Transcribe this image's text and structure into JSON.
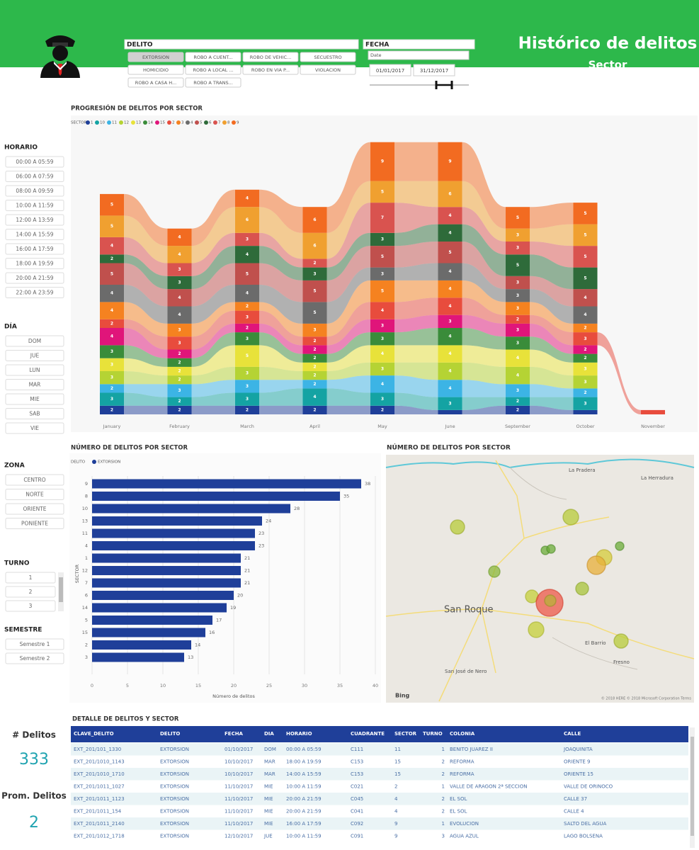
{
  "header": {
    "title": "Histórico de delitos",
    "subtitle": "Sector"
  },
  "filters": {
    "delito": {
      "label": "DELITO",
      "selected": 0,
      "options": [
        "EXTORSION",
        "ROBO A CUENT...",
        "ROBO DE VEHIC...",
        "SECUESTRO",
        "HOMICIDIO",
        "ROBO A LOCAL ...",
        "ROBO EN VIA P...",
        "VIOLACION",
        "ROBO A CASA H...",
        "ROBO A TRANS..."
      ]
    },
    "fecha": {
      "label": "FECHA",
      "field": "Date",
      "start": "01/01/2017",
      "end": "31/12/2017"
    }
  },
  "slicers": [
    {
      "label": "HORARIO",
      "items": [
        "00:00 A 05:59",
        "06:00 A 07:59",
        "08:00 A 09:59",
        "10:00 A 11:59",
        "12:00 A 13:59",
        "14:00 A 15:59",
        "16:00 A 17:59",
        "18:00 A 19:59",
        "20:00 A 21:59",
        "22:00 A 23:59"
      ]
    },
    {
      "label": "DÍA",
      "items": [
        "DOM",
        "JUE",
        "LUN",
        "MAR",
        "MIE",
        "SAB",
        "VIE"
      ]
    },
    {
      "label": "ZONA",
      "items": [
        "CENTRO",
        "NORTE",
        "ORIENTE",
        "PONIENTE"
      ]
    },
    {
      "label": "TURNO",
      "items": [
        "1",
        "2",
        "3"
      ]
    },
    {
      "label": "SEMESTRE",
      "items": [
        "Semestre 1",
        "Semestre 2"
      ]
    }
  ],
  "chart_data": [
    {
      "type": "ribbon",
      "title": "PROGRESIÓN DE DELITOS POR SECTOR",
      "legend_title": "SECTOR",
      "categories": [
        "January",
        "February",
        "March",
        "April",
        "May",
        "June",
        "September",
        "October",
        "November"
      ],
      "series": [
        {
          "name": "1",
          "color": "#1f3f99",
          "values": [
            2,
            2,
            2,
            2,
            2,
            1,
            2,
            1,
            0
          ]
        },
        {
          "name": "10",
          "color": "#14a3a3",
          "values": [
            3,
            2,
            3,
            4,
            3,
            3,
            2,
            3,
            0
          ]
        },
        {
          "name": "11",
          "color": "#3cb4e5",
          "values": [
            2,
            3,
            3,
            2,
            4,
            4,
            3,
            2,
            0
          ]
        },
        {
          "name": "12",
          "color": "#b5d334",
          "values": [
            3,
            2,
            3,
            2,
            3,
            4,
            4,
            3,
            0
          ]
        },
        {
          "name": "13",
          "color": "#e8e23a",
          "values": [
            3,
            2,
            5,
            2,
            4,
            4,
            4,
            3,
            0
          ]
        },
        {
          "name": "14",
          "color": "#3a8c3a",
          "values": [
            3,
            2,
            3,
            2,
            3,
            4,
            3,
            2,
            0
          ]
        },
        {
          "name": "15",
          "color": "#e0157a",
          "values": [
            4,
            2,
            2,
            2,
            3,
            3,
            3,
            2,
            0
          ]
        },
        {
          "name": "2",
          "color": "#e84c3d",
          "values": [
            2,
            3,
            3,
            2,
            4,
            4,
            2,
            3,
            1
          ]
        },
        {
          "name": "3",
          "color": "#f58220",
          "values": [
            4,
            3,
            2,
            3,
            5,
            4,
            3,
            2,
            0
          ]
        },
        {
          "name": "4",
          "color": "#6b6b6b",
          "values": [
            4,
            4,
            4,
            5,
            3,
            4,
            3,
            4,
            0
          ]
        },
        {
          "name": "5",
          "color": "#c0504d",
          "values": [
            5,
            4,
            5,
            5,
            5,
            5,
            3,
            4,
            0
          ]
        },
        {
          "name": "6",
          "color": "#2e6b3a",
          "values": [
            2,
            3,
            4,
            3,
            3,
            4,
            5,
            5,
            0
          ]
        },
        {
          "name": "7",
          "color": "#d9534f",
          "values": [
            4,
            3,
            3,
            2,
            7,
            4,
            3,
            5,
            0
          ]
        },
        {
          "name": "8",
          "color": "#f0a030",
          "values": [
            5,
            4,
            6,
            6,
            5,
            6,
            3,
            5,
            0
          ]
        },
        {
          "name": "9",
          "color": "#f26b21",
          "values": [
            5,
            4,
            4,
            6,
            9,
            9,
            5,
            5,
            0
          ]
        }
      ]
    },
    {
      "type": "bar",
      "orientation": "horizontal",
      "title": "NÚMERO DE DELITOS POR SECTOR",
      "legend_title": "DELITO",
      "categories": [
        "9",
        "8",
        "10",
        "13",
        "11",
        "4",
        "1",
        "12",
        "7",
        "6",
        "14",
        "5",
        "15",
        "2",
        "3"
      ],
      "series": [
        {
          "name": "EXTORSION",
          "color": "#1f3f99",
          "values": [
            38,
            35,
            28,
            24,
            23,
            23,
            21,
            21,
            21,
            20,
            19,
            17,
            16,
            14,
            13
          ]
        }
      ],
      "xlim": [
        0,
        40
      ],
      "xticks": [
        0,
        5,
        10,
        15,
        20,
        25,
        30,
        35,
        40
      ],
      "grid": true,
      "xlabel": "Número de delitos",
      "ylabel": "SECTOR"
    }
  ],
  "map": {
    "title": "NÚMERO DE DELITOS POR SECTOR",
    "places": [
      "San Roque",
      "La Pradera",
      "La Herradura",
      "El Barrio",
      "Fresno",
      "San José de Nero"
    ],
    "attribution": "Bing",
    "copyright": "© 2018 HERE © 2018 Microsoft Corporation Terms"
  },
  "kpis": [
    {
      "label": "# Delitos",
      "value": 333
    },
    {
      "label": "Prom. Delitos",
      "value": 2
    }
  ],
  "table": {
    "title": "DETALLE DE DELITOS Y SECTOR",
    "columns": [
      "CLAVE_DELITO",
      "DELITO",
      "FECHA",
      "DIA",
      "HORARIO",
      "CUADRANTE",
      "SECTOR",
      "TURNO",
      "COLONIA",
      "CALLE"
    ],
    "rows": [
      [
        "EXT_201/101_1330",
        "EXTORSION",
        "01/10/2017",
        "DOM",
        "00:00 A 05:59",
        "C111",
        "11",
        "1",
        "BENITO JUAREZ II",
        "JOAQUINITA"
      ],
      [
        "EXT_201/1010_1143",
        "EXTORSION",
        "10/10/2017",
        "MAR",
        "18:00 A 19:59",
        "C153",
        "15",
        "2",
        "REFORMA",
        "ORIENTE 9"
      ],
      [
        "EXT_201/1010_1710",
        "EXTORSION",
        "10/10/2017",
        "MAR",
        "14:00 A 15:59",
        "C153",
        "15",
        "2",
        "REFORMA",
        "ORIENTE 15"
      ],
      [
        "EXT_201/1011_1027",
        "EXTORSION",
        "11/10/2017",
        "MIE",
        "10:00 A 11:59",
        "C021",
        "2",
        "1",
        "VALLE DE ARAGON 2ª SECCION",
        "VALLE DE ORINOCO"
      ],
      [
        "EXT_201/1011_1123",
        "EXTORSION",
        "11/10/2017",
        "MIE",
        "20:00 A 21:59",
        "C045",
        "4",
        "2",
        "EL SOL",
        "CALLE 37"
      ],
      [
        "EXT_201/1011_154",
        "EXTORSION",
        "11/10/2017",
        "MIE",
        "20:00 A 21:59",
        "C041",
        "4",
        "2",
        "EL SOL",
        "CALLE 4"
      ],
      [
        "EXT_201/1011_2140",
        "EXTORSION",
        "11/10/2017",
        "MIE",
        "16:00 A 17:59",
        "C092",
        "9",
        "1",
        "EVOLUCION",
        "SALTO DEL AGUA"
      ],
      [
        "EXT_201/1012_1718",
        "EXTORSION",
        "12/10/2017",
        "JUE",
        "10:00 A 11:59",
        "C091",
        "9",
        "3",
        "AGUA AZUL",
        "LAGO BOLSENA"
      ]
    ]
  }
}
